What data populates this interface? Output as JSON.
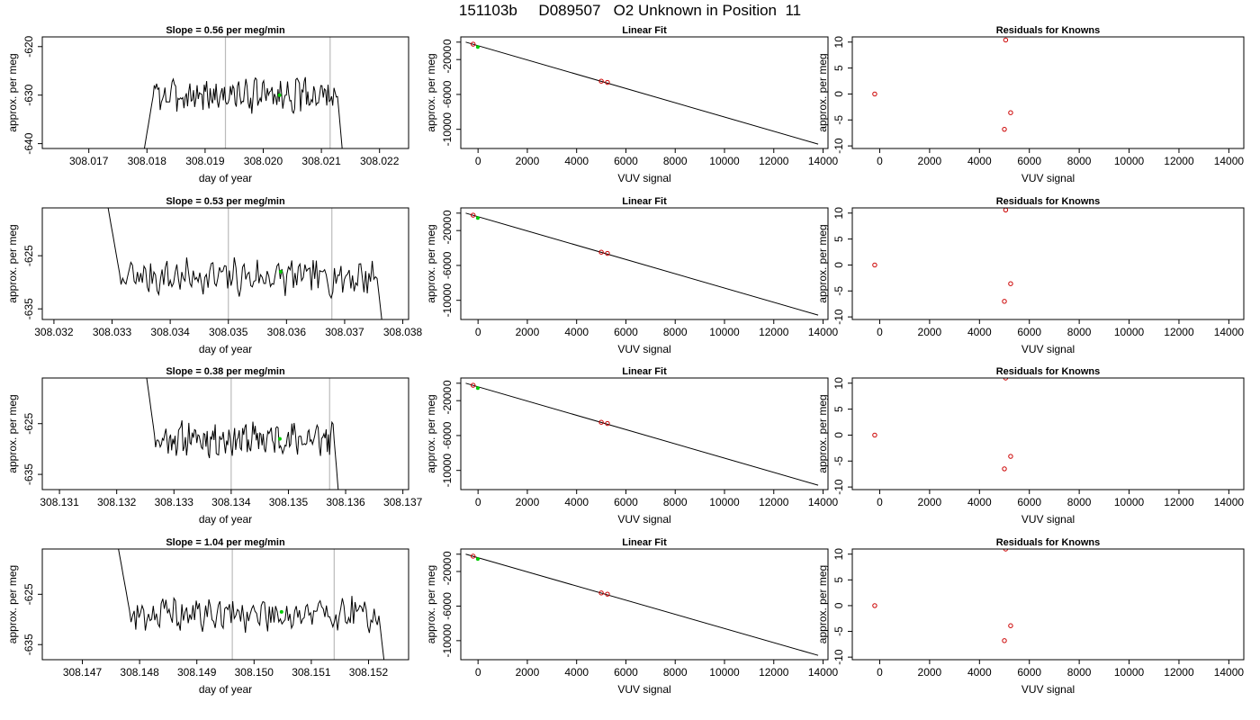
{
  "page": {
    "title": "151103b     D089507   O2 Unknown in Position  11"
  },
  "style": {
    "trace_color": "#000000",
    "marker_green": "#00cc00",
    "marker_red": "#cc0000",
    "window_line_color": "#bbbbbb"
  },
  "chart_data": [
    {
      "type": "line",
      "title": "Slope =  0.56  per meg/min",
      "xlabel": "day of year",
      "ylabel": "approx. per meg",
      "xlim": [
        308.0162,
        308.0225
      ],
      "ylim": [
        -641,
        -618
      ],
      "xticks": [
        "308.017",
        "308.018",
        "308.019",
        "308.020",
        "308.021",
        "308.022"
      ],
      "xtick_values": [
        308.017,
        308.018,
        308.019,
        308.02,
        308.021,
        308.022
      ],
      "yticks": [
        "-640",
        "-630",
        "-620"
      ],
      "ytick_values": [
        -640,
        -630,
        -620
      ],
      "vlines": [
        308.01935,
        308.02115
      ],
      "trace_x_range": [
        308.0179,
        308.02138
      ],
      "mean": -630,
      "amplitude": 2,
      "marker": {
        "x": 308.02028,
        "y": -630
      },
      "seed": 3
    },
    {
      "type": "line",
      "title": "Slope =  0.53  per meg/min",
      "xlabel": "day of year",
      "ylabel": "approx. per meg",
      "xlim": [
        308.0318,
        308.0381
      ],
      "ylim": [
        -637,
        -616
      ],
      "xticks": [
        "308.032",
        "308.033",
        "308.034",
        "308.035",
        "308.036",
        "308.037",
        "308.038"
      ],
      "xtick_values": [
        308.032,
        308.033,
        308.034,
        308.035,
        308.036,
        308.037,
        308.038
      ],
      "yticks": [
        "-635",
        "-625"
      ],
      "ytick_values": [
        -635,
        -625
      ],
      "vlines": [
        308.035,
        308.03678
      ],
      "trace_x_range": [
        308.0329,
        308.0377
      ],
      "mean": -629,
      "amplitude": 2,
      "marker": {
        "x": 308.0359,
        "y": -628
      },
      "seed": 7
    },
    {
      "type": "line",
      "title": "Slope =  0.38  per meg/min",
      "xlabel": "day of year",
      "ylabel": "approx. per meg",
      "xlim": [
        308.1307,
        308.1371
      ],
      "ylim": [
        -638,
        -616
      ],
      "xticks": [
        "308.131",
        "308.132",
        "308.133",
        "308.134",
        "308.135",
        "308.136",
        "308.137"
      ],
      "xtick_values": [
        308.131,
        308.132,
        308.133,
        308.134,
        308.135,
        308.136,
        308.137
      ],
      "yticks": [
        "-635",
        "-625"
      ],
      "ytick_values": [
        -635,
        -625
      ],
      "vlines": [
        308.134,
        308.13572
      ],
      "trace_x_range": [
        308.1325,
        308.1359
      ],
      "mean": -628,
      "amplitude": 2,
      "marker": {
        "x": 308.13485,
        "y": -628
      },
      "seed": 11
    },
    {
      "type": "line",
      "title": "Slope =  1.04  per meg/min",
      "xlabel": "day of year",
      "ylabel": "approx. per meg",
      "xlim": [
        308.1463,
        308.1527
      ],
      "ylim": [
        -638,
        -616
      ],
      "xticks": [
        "308.147",
        "308.148",
        "308.149",
        "308.150",
        "308.151",
        "308.152"
      ],
      "xtick_values": [
        308.147,
        308.148,
        308.149,
        308.15,
        308.151,
        308.152
      ],
      "yticks": [
        "-635",
        "-625"
      ],
      "ytick_values": [
        -635,
        -625
      ],
      "vlines": [
        308.14962,
        308.1514
      ],
      "trace_x_range": [
        308.1476,
        308.15232
      ],
      "mean": -629,
      "amplitude": 2,
      "marker": {
        "x": 308.15048,
        "y": -628.5
      },
      "seed": 19
    },
    {
      "type": "scatter",
      "title": "Linear Fit",
      "xlabel": "VUV signal",
      "ylabel": "approx. per meg",
      "xlim": [
        -700,
        14200
      ],
      "ylim": [
        -12200,
        600
      ],
      "xticks": [
        "0",
        "2000",
        "4000",
        "6000",
        "8000",
        "10000",
        "12000",
        "14000"
      ],
      "xtick_values": [
        0,
        2000,
        4000,
        6000,
        8000,
        10000,
        12000,
        14000
      ],
      "yticks": [
        "-10000",
        "-6000",
        "-2000",
        "0"
      ],
      "ytick_values": [
        -10000,
        -6000,
        -2000,
        0
      ],
      "fit_line": [
        [
          -500,
          0
        ],
        [
          13800,
          -11700
        ]
      ],
      "red_points": [
        [
          -200,
          -230
        ],
        [
          5000,
          -4480
        ],
        [
          5250,
          -4620
        ]
      ],
      "green_points": [
        [
          -10,
          -560
        ]
      ]
    },
    {
      "type": "scatter",
      "title": "Linear Fit",
      "xlabel": "VUV signal",
      "ylabel": "approx. per meg",
      "xlim": [
        -700,
        14200
      ],
      "ylim": [
        -12200,
        600
      ],
      "xticks": [
        "0",
        "2000",
        "4000",
        "6000",
        "8000",
        "10000",
        "12000",
        "14000"
      ],
      "xtick_values": [
        0,
        2000,
        4000,
        6000,
        8000,
        10000,
        12000,
        14000
      ],
      "yticks": [
        "-10000",
        "-6000",
        "-2000",
        "0"
      ],
      "ytick_values": [
        -10000,
        -6000,
        -2000,
        0
      ],
      "fit_line": [
        [
          -500,
          0
        ],
        [
          13800,
          -11700
        ]
      ],
      "red_points": [
        [
          -200,
          -230
        ],
        [
          5000,
          -4480
        ],
        [
          5250,
          -4620
        ]
      ],
      "green_points": [
        [
          -10,
          -560
        ]
      ]
    },
    {
      "type": "scatter",
      "title": "Linear Fit",
      "xlabel": "VUV signal",
      "ylabel": "approx. per meg",
      "xlim": [
        -700,
        14200
      ],
      "ylim": [
        -12200,
        600
      ],
      "xticks": [
        "0",
        "2000",
        "4000",
        "6000",
        "8000",
        "10000",
        "12000",
        "14000"
      ],
      "xtick_values": [
        0,
        2000,
        4000,
        6000,
        8000,
        10000,
        12000,
        14000
      ],
      "yticks": [
        "-10000",
        "-6000",
        "-2000",
        "0"
      ],
      "ytick_values": [
        -10000,
        -6000,
        -2000,
        0
      ],
      "fit_line": [
        [
          -500,
          0
        ],
        [
          13800,
          -11700
        ]
      ],
      "red_points": [
        [
          -200,
          -230
        ],
        [
          5000,
          -4480
        ],
        [
          5250,
          -4620
        ]
      ],
      "green_points": [
        [
          -10,
          -560
        ]
      ]
    },
    {
      "type": "scatter",
      "title": "Linear Fit",
      "xlabel": "VUV signal",
      "ylabel": "approx. per meg",
      "xlim": [
        -700,
        14200
      ],
      "ylim": [
        -12200,
        600
      ],
      "xticks": [
        "0",
        "2000",
        "4000",
        "6000",
        "8000",
        "10000",
        "12000",
        "14000"
      ],
      "xtick_values": [
        0,
        2000,
        4000,
        6000,
        8000,
        10000,
        12000,
        14000
      ],
      "yticks": [
        "-10000",
        "-6000",
        "-2000",
        "0"
      ],
      "ytick_values": [
        -10000,
        -6000,
        -2000,
        0
      ],
      "fit_line": [
        [
          -500,
          0
        ],
        [
          13800,
          -11700
        ]
      ],
      "red_points": [
        [
          -200,
          -230
        ],
        [
          5000,
          -4480
        ],
        [
          5250,
          -4620
        ]
      ],
      "green_points": [
        [
          -10,
          -560
        ]
      ]
    },
    {
      "type": "scatter",
      "title": "Residuals for Knowns",
      "xlabel": "VUV signal",
      "ylabel": "approx. per meg",
      "xlim": [
        -1100,
        14600
      ],
      "ylim": [
        -10.5,
        11
      ],
      "xticks": [
        "0",
        "2000",
        "4000",
        "6000",
        "8000",
        "10000",
        "12000",
        "14000"
      ],
      "xtick_values": [
        0,
        2000,
        4000,
        6000,
        8000,
        10000,
        12000,
        14000
      ],
      "yticks": [
        "-10",
        "-5",
        "0",
        "5",
        "10"
      ],
      "ytick_values": [
        -10,
        -5,
        0,
        5,
        10
      ],
      "red_points": [
        [
          -200,
          0
        ],
        [
          5050,
          10.4
        ],
        [
          5000,
          -6.8
        ],
        [
          5250,
          -3.6
        ]
      ]
    },
    {
      "type": "scatter",
      "title": "Residuals for Knowns",
      "xlabel": "VUV signal",
      "ylabel": "approx. per meg",
      "xlim": [
        -1100,
        14600
      ],
      "ylim": [
        -10.5,
        11
      ],
      "xticks": [
        "0",
        "2000",
        "4000",
        "6000",
        "8000",
        "10000",
        "12000",
        "14000"
      ],
      "xtick_values": [
        0,
        2000,
        4000,
        6000,
        8000,
        10000,
        12000,
        14000
      ],
      "yticks": [
        "-10",
        "-5",
        "0",
        "5",
        "10"
      ],
      "ytick_values": [
        -10,
        -5,
        0,
        5,
        10
      ],
      "red_points": [
        [
          -200,
          0
        ],
        [
          5050,
          10.6
        ],
        [
          5000,
          -7.0
        ],
        [
          5250,
          -3.6
        ]
      ]
    },
    {
      "type": "scatter",
      "title": "Residuals for Knowns",
      "xlabel": "VUV signal",
      "ylabel": "approx. per meg",
      "xlim": [
        -1100,
        14600
      ],
      "ylim": [
        -10.5,
        11
      ],
      "xticks": [
        "0",
        "2000",
        "4000",
        "6000",
        "8000",
        "10000",
        "12000",
        "14000"
      ],
      "xtick_values": [
        0,
        2000,
        4000,
        6000,
        8000,
        10000,
        12000,
        14000
      ],
      "yticks": [
        "-10",
        "-5",
        "0",
        "5",
        "10"
      ],
      "ytick_values": [
        -10,
        -5,
        0,
        5,
        10
      ],
      "red_points": [
        [
          -200,
          0
        ],
        [
          5050,
          11.0
        ],
        [
          5000,
          -6.5
        ],
        [
          5250,
          -4.1
        ]
      ]
    },
    {
      "type": "scatter",
      "title": "Residuals for Knowns",
      "xlabel": "VUV signal",
      "ylabel": "approx. per meg",
      "xlim": [
        -1100,
        14600
      ],
      "ylim": [
        -10.5,
        11
      ],
      "xticks": [
        "0",
        "2000",
        "4000",
        "6000",
        "8000",
        "10000",
        "12000",
        "14000"
      ],
      "xtick_values": [
        0,
        2000,
        4000,
        6000,
        8000,
        10000,
        12000,
        14000
      ],
      "yticks": [
        "-10",
        "-5",
        "0",
        "5",
        "10"
      ],
      "ytick_values": [
        -10,
        -5,
        0,
        5,
        10
      ],
      "red_points": [
        [
          -200,
          0
        ],
        [
          5050,
          11.0
        ],
        [
          5000,
          -6.8
        ],
        [
          5250,
          -3.9
        ]
      ]
    }
  ]
}
